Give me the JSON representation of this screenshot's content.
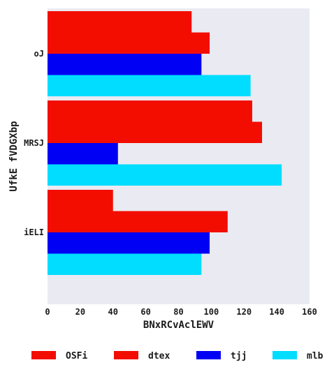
{
  "chart_data": {
    "type": "bar",
    "orientation": "horizontal",
    "categories": [
      "oJ",
      "MRSJ",
      "iELI"
    ],
    "series": [
      {
        "name": "OSFi",
        "color": "#f20d00",
        "values": [
          88,
          125,
          40
        ]
      },
      {
        "name": "dtex",
        "color": "#f20d00",
        "values": [
          99,
          131,
          110
        ]
      },
      {
        "name": "tjj",
        "color": "#0000f5",
        "values": [
          94,
          43,
          99
        ]
      },
      {
        "name": "mlb",
        "color": "#00ddff",
        "values": [
          124,
          143,
          94
        ]
      }
    ],
    "xlabel": "BNxRCvAclEWV",
    "ylabel": "UfkE  fVDGXbp",
    "xlim": [
      0,
      160
    ],
    "xticks": [
      0,
      20,
      40,
      60,
      80,
      100,
      120,
      140,
      160
    ],
    "grid": false,
    "legend_position": "bottom",
    "background": "#eaeaf2"
  }
}
